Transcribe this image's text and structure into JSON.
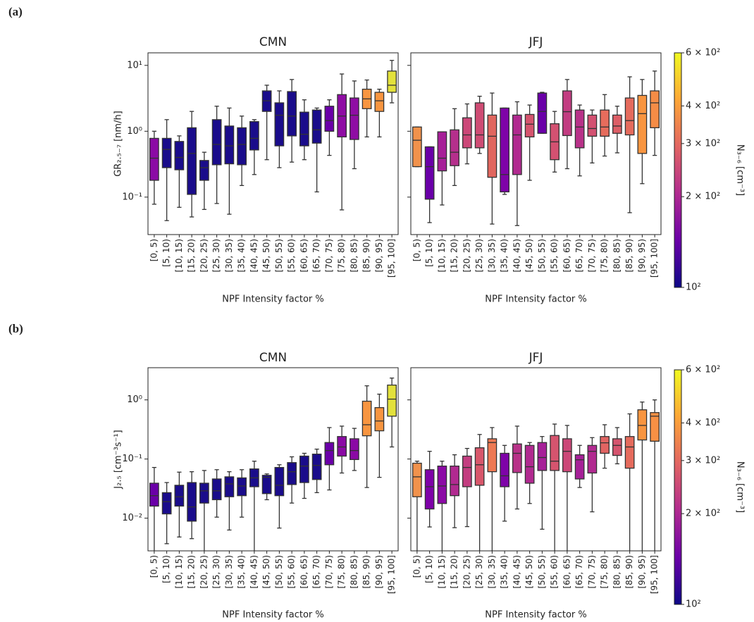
{
  "panel_labels": [
    "(a)",
    "(b)"
  ],
  "chart_data": [
    {
      "type": "box",
      "title": "CMN",
      "ylabel": "GR₂.₅₋₇ [nm/h]",
      "xlabel": "NPF Intensity factor %",
      "categories": [
        "[0, 5)",
        "[5, 10)",
        "[10, 15)",
        "[15, 20)",
        "[20, 25)",
        "[25, 30)",
        "[30, 35)",
        "[35, 40)",
        "[40, 45)",
        "[45, 50)",
        "[50, 55)",
        "[55, 60)",
        "[60, 65)",
        "[65, 70)",
        "[70, 75)",
        "[75, 80)",
        "[80, 85)",
        "[85, 90)",
        "[90, 95)",
        "[95, 100]"
      ],
      "log_y": true,
      "ylim": [
        0.027,
        15.5
      ],
      "yticks": [
        {
          "value": 0.1,
          "label": "10⁻¹"
        },
        {
          "value": 1,
          "label": "10⁰"
        },
        {
          "value": 10,
          "label": "10¹"
        }
      ],
      "show_ytick_labels": true,
      "whislo": [
        0.078,
        0.044,
        0.07,
        0.05,
        0.065,
        0.08,
        0.055,
        0.15,
        0.22,
        0.37,
        0.28,
        0.34,
        0.37,
        0.12,
        0.43,
        0.064,
        0.27,
        0.82,
        0.82,
        2.7
      ],
      "q1": [
        0.18,
        0.28,
        0.26,
        0.11,
        0.18,
        0.31,
        0.32,
        0.31,
        0.52,
        2.0,
        0.6,
        0.85,
        0.6,
        0.66,
        1.0,
        0.82,
        0.75,
        2.2,
        2.0,
        3.9
      ],
      "median": [
        0.39,
        0.53,
        0.4,
        0.46,
        0.28,
        0.63,
        0.6,
        0.63,
        0.78,
        2.9,
        1.75,
        1.7,
        0.9,
        1.05,
        1.45,
        1.7,
        1.75,
        3.1,
        2.9,
        5.0
      ],
      "q3": [
        0.78,
        0.78,
        0.7,
        1.13,
        0.36,
        1.5,
        1.2,
        1.13,
        1.4,
        4.1,
        2.7,
        4.0,
        1.95,
        2.1,
        2.4,
        3.6,
        3.2,
        4.35,
        3.9,
        8.2
      ],
      "whishi": [
        1.0,
        1.5,
        0.85,
        2.0,
        0.48,
        2.4,
        2.25,
        1.7,
        1.5,
        5.0,
        4.1,
        6.1,
        3.0,
        2.25,
        3.0,
        7.4,
        5.8,
        6.0,
        4.35,
        11.9
      ],
      "colors": [
        "#8b0aa5",
        "#1a0c8b",
        "#1a0c8b",
        "#1a0c8b",
        "#1a0c8b",
        "#1a0c8b",
        "#1a0c8b",
        "#1a0c8b",
        "#1a0c8b",
        "#1a0c8b",
        "#1a0c8b",
        "#1a0c8b",
        "#1a0c8b",
        "#1a0c8b",
        "#6a00a8",
        "#8f0da4",
        "#8f0da4",
        "#f89540",
        "#f89540",
        "#e3e13c"
      ]
    },
    {
      "type": "box",
      "title": "JFJ",
      "xlabel": "NPF Intensity factor %",
      "categories": [
        "[0, 5)",
        "[5, 10)",
        "[10, 15)",
        "[15, 20)",
        "[20, 25)",
        "[25, 30)",
        "[30, 35)",
        "[35, 40)",
        "[40, 45)",
        "[45, 50)",
        "[50, 55)",
        "[55, 60)",
        "[60, 65)",
        "[65, 70)",
        "[70, 75)",
        "[75, 80)",
        "[80, 85)",
        "[85, 90)",
        "[90, 95)",
        "[95, 100]"
      ],
      "log_y": true,
      "ylim": [
        0.027,
        15.5
      ],
      "yticks": [
        0.1,
        1,
        10
      ],
      "show_ytick_labels": false,
      "whislo": [
        0.29,
        0.041,
        0.076,
        0.15,
        0.32,
        0.46,
        0.039,
        0.11,
        0.037,
        0.18,
        0.93,
        0.24,
        0.27,
        0.21,
        0.33,
        0.42,
        0.47,
        0.058,
        0.16,
        0.43
      ],
      "q1": [
        0.29,
        0.093,
        0.25,
        0.3,
        0.56,
        0.56,
        0.2,
        0.12,
        0.22,
        0.82,
        0.93,
        0.37,
        0.86,
        0.56,
        0.84,
        0.84,
        0.93,
        0.88,
        0.46,
        1.13
      ],
      "median": [
        0.73,
        0.29,
        0.39,
        0.48,
        0.88,
        0.88,
        0.84,
        0.22,
        0.88,
        1.28,
        2.0,
        0.69,
        1.98,
        1.16,
        1.1,
        1.16,
        1.2,
        1.45,
        1.85,
        2.7
      ],
      "q3": [
        1.16,
        0.58,
        0.98,
        1.05,
        1.6,
        2.7,
        1.76,
        2.25,
        1.76,
        1.8,
        3.8,
        1.3,
        4.1,
        2.1,
        1.76,
        2.1,
        1.76,
        3.2,
        3.5,
        4.1
      ],
      "whishi": [
        1.16,
        0.58,
        0.98,
        2.2,
        2.6,
        3.4,
        3.8,
        2.25,
        2.8,
        2.5,
        3.9,
        2.0,
        6.1,
        2.5,
        2.1,
        3.6,
        2.4,
        6.7,
        6.1,
        8.2
      ],
      "colors": [
        "#f1924c",
        "#6a00a8",
        "#a62098",
        "#b52f8c",
        "#cc4778",
        "#cf4c74",
        "#e0665e",
        "#7e03a8",
        "#b12a90",
        "#d5546e",
        "#6a00a8",
        "#d35171",
        "#c23c81",
        "#b83289",
        "#d35171",
        "#e66c5c",
        "#dd5e66",
        "#e56b5d",
        "#f89540",
        "#f58c46"
      ]
    },
    {
      "type": "colorbar",
      "label": "N₃₋₆ [cm⁻³]",
      "log": true,
      "clim": [
        100,
        600
      ],
      "colormap": [
        "#0d0887",
        "#6a00a8",
        "#b12a90",
        "#e16462",
        "#fca636",
        "#f0f921"
      ],
      "ticks": [
        {
          "value": 600,
          "label": "6 × 10²"
        },
        {
          "value": 400,
          "label": "4 × 10²"
        },
        {
          "value": 300,
          "label": "3 × 10²"
        },
        {
          "value": 200,
          "label": "2 × 10²"
        },
        {
          "value": 100,
          "label": "10²"
        }
      ]
    },
    {
      "type": "box",
      "title": "CMN",
      "ylabel": "J₂.₅ [cm⁻³s⁻¹]",
      "xlabel": "NPF Intensity factor %",
      "categories": [
        "[0, 5)",
        "[5, 10)",
        "[10, 15)",
        "[15, 20)",
        "[20, 25)",
        "[25, 30)",
        "[30, 35)",
        "[35, 40)",
        "[40, 45)",
        "[45, 50)",
        "[50, 55)",
        "[55, 60)",
        "[60, 65)",
        "[65, 70)",
        "[70, 75)",
        "[75, 80)",
        "[80, 85)",
        "[85, 90)",
        "[90, 95)",
        "[95, 100]"
      ],
      "log_y": true,
      "ylim": [
        0.0028,
        3.5
      ],
      "yticks": [
        {
          "value": 0.01,
          "label": "10⁻²"
        },
        {
          "value": 0.1,
          "label": "10⁻¹"
        },
        {
          "value": 1,
          "label": "10⁰"
        }
      ],
      "show_ytick_labels": true,
      "whislo": [
        0.0025,
        0.0037,
        0.0048,
        0.0045,
        0.0023,
        0.0104,
        0.0063,
        0.0104,
        0.0023,
        0.0205,
        0.0068,
        0.018,
        0.0216,
        0.027,
        0.03,
        0.058,
        0.064,
        0.033,
        0.049,
        0.16
      ],
      "q1": [
        0.016,
        0.0118,
        0.016,
        0.0089,
        0.018,
        0.0205,
        0.023,
        0.024,
        0.034,
        0.026,
        0.024,
        0.037,
        0.04,
        0.045,
        0.08,
        0.112,
        0.098,
        0.247,
        0.3,
        0.53
      ],
      "median": [
        0.024,
        0.019,
        0.023,
        0.0155,
        0.029,
        0.029,
        0.038,
        0.035,
        0.048,
        0.049,
        0.036,
        0.061,
        0.076,
        0.078,
        0.139,
        0.16,
        0.139,
        0.38,
        0.44,
        1.03
      ],
      "q3": [
        0.039,
        0.027,
        0.036,
        0.04,
        0.039,
        0.046,
        0.05,
        0.048,
        0.068,
        0.053,
        0.072,
        0.087,
        0.112,
        0.121,
        0.19,
        0.24,
        0.22,
        0.95,
        0.74,
        1.78
      ],
      "whishi": [
        0.072,
        0.04,
        0.06,
        0.061,
        0.064,
        0.066,
        0.061,
        0.066,
        0.092,
        0.056,
        0.08,
        0.109,
        0.125,
        0.147,
        0.34,
        0.36,
        0.33,
        1.73,
        1.25,
        2.34
      ],
      "colors": [
        "#6a00a8",
        "#1a0c8b",
        "#1a0c8b",
        "#1a0c8b",
        "#1a0c8b",
        "#1a0c8b",
        "#1a0c8b",
        "#1a0c8b",
        "#1a0c8b",
        "#1a0c8b",
        "#1a0c8b",
        "#1a0c8b",
        "#1a0c8b",
        "#1a0c8b",
        "#6a00a8",
        "#8b0aa5",
        "#8b0aa5",
        "#f89540",
        "#f89540",
        "#e3e13c"
      ]
    },
    {
      "type": "box",
      "title": "JFJ",
      "xlabel": "NPF Intensity factor %",
      "categories": [
        "[0, 5)",
        "[5, 10)",
        "[10, 15)",
        "[15, 20)",
        "[20, 25)",
        "[25, 30)",
        "[30, 35)",
        "[35, 40)",
        "[40, 45)",
        "[45, 50)",
        "[50, 55)",
        "[55, 60)",
        "[60, 65)",
        "[65, 70)",
        "[70, 75)",
        "[75, 80)",
        "[80, 85)",
        "[85, 90)",
        "[90, 95)",
        "[95, 100]"
      ],
      "log_y": true,
      "ylim": [
        0.0028,
        3.5
      ],
      "yticks": [
        0.01,
        0.1,
        1
      ],
      "show_ytick_labels": false,
      "whislo": [
        0.002,
        0.0071,
        0.002,
        0.0069,
        0.0072,
        0.002,
        0.002,
        0.0089,
        0.0143,
        0.0177,
        0.0065,
        0.002,
        0.002,
        0.033,
        0.0128,
        0.07,
        0.083,
        0.002,
        0.002,
        0.002
      ],
      "q1": [
        0.023,
        0.0143,
        0.0177,
        0.024,
        0.034,
        0.036,
        0.061,
        0.034,
        0.059,
        0.039,
        0.064,
        0.064,
        0.061,
        0.046,
        0.058,
        0.125,
        0.115,
        0.07,
        0.21,
        0.2
      ],
      "median": [
        0.05,
        0.034,
        0.035,
        0.037,
        0.072,
        0.08,
        0.19,
        0.052,
        0.125,
        0.074,
        0.106,
        0.092,
        0.135,
        0.097,
        0.135,
        0.188,
        0.17,
        0.16,
        0.37,
        0.53
      ],
      "q3": [
        0.085,
        0.066,
        0.076,
        0.076,
        0.112,
        0.155,
        0.22,
        0.125,
        0.18,
        0.17,
        0.19,
        0.25,
        0.22,
        0.118,
        0.17,
        0.24,
        0.22,
        0.24,
        0.68,
        0.61
      ],
      "whishi": [
        0.092,
        0.135,
        0.092,
        0.118,
        0.151,
        0.26,
        0.34,
        0.17,
        0.36,
        0.19,
        0.24,
        0.39,
        0.37,
        0.17,
        0.23,
        0.38,
        0.34,
        0.58,
        0.92,
        1.0
      ],
      "colors": [
        "#f1924c",
        "#7e03a8",
        "#8b0aa5",
        "#b12a90",
        "#c33d80",
        "#d8576b",
        "#ed7953",
        "#7e03a8",
        "#b83289",
        "#b12a90",
        "#a62098",
        "#d5546e",
        "#cc4778",
        "#a62098",
        "#b12a90",
        "#e16462",
        "#d5546e",
        "#e56b5d",
        "#f89540",
        "#f79044"
      ]
    },
    {
      "type": "colorbar",
      "label": "N₃₋₆ [cm⁻³]",
      "log": true,
      "clim": [
        100,
        600
      ],
      "colormap": [
        "#0d0887",
        "#6a00a8",
        "#b12a90",
        "#e16462",
        "#fca636",
        "#f0f921"
      ],
      "ticks": [
        {
          "value": 600,
          "label": "6 × 10²"
        },
        {
          "value": 400,
          "label": "4 × 10²"
        },
        {
          "value": 300,
          "label": "3 × 10²"
        },
        {
          "value": 200,
          "label": "2 × 10²"
        },
        {
          "value": 100,
          "label": "10²"
        }
      ]
    }
  ]
}
